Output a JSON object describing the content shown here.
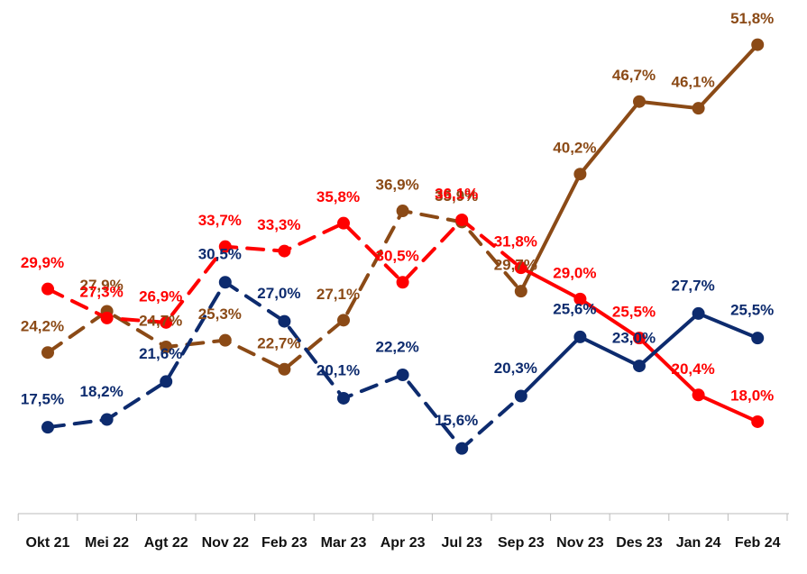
{
  "chart_data": {
    "type": "line",
    "categories": [
      "Okt 21",
      "Mei 22",
      "Agt 22",
      "Nov 22",
      "Feb 23",
      "Mar 23",
      "Apr 23",
      "Jul 23",
      "Sep 23",
      "Nov 23",
      "Des 23",
      "Jan 24",
      "Feb 24"
    ],
    "dashed_until": "Sep 23",
    "ylim": [
      10,
      55
    ],
    "series": [
      {
        "color": "#8b4a16",
        "values": [
          24.2,
          27.9,
          24.7,
          25.3,
          22.7,
          27.1,
          36.9,
          35.9,
          29.7,
          40.2,
          46.7,
          46.1,
          51.8
        ],
        "value_labels": [
          "24,2%",
          "27,9%",
          "24,7%",
          "25,3%",
          "22,7%",
          "27,1%",
          "36,9%",
          "35,9%",
          "29,7%",
          "40,2%",
          "46,7%",
          "46,1%",
          "51,8%"
        ]
      },
      {
        "color": "#ff0000",
        "values": [
          29.9,
          27.3,
          26.9,
          33.7,
          33.3,
          35.8,
          30.5,
          36.1,
          31.8,
          29.0,
          25.5,
          20.4,
          18.0
        ],
        "value_labels": [
          "29,9%",
          "27,3%",
          "26,9%",
          "33,7%",
          "33,3%",
          "35,8%",
          "30,5%",
          "36,1%",
          "31,8%",
          "29,0%",
          "25,5%",
          "20,4%",
          "18,0%"
        ]
      },
      {
        "color": "#0d2b6e",
        "values": [
          17.5,
          18.2,
          21.6,
          30.5,
          27.0,
          20.1,
          22.2,
          15.6,
          20.3,
          25.6,
          23.0,
          27.7,
          25.5
        ],
        "value_labels": [
          "17,5%",
          "18,2%",
          "21,6%",
          "30,5%",
          "27,0%",
          "20,1%",
          "22,2%",
          "15,6%",
          "20,3%",
          "25,6%",
          "23,0%",
          "27,7%",
          "25,5%"
        ]
      }
    ]
  }
}
